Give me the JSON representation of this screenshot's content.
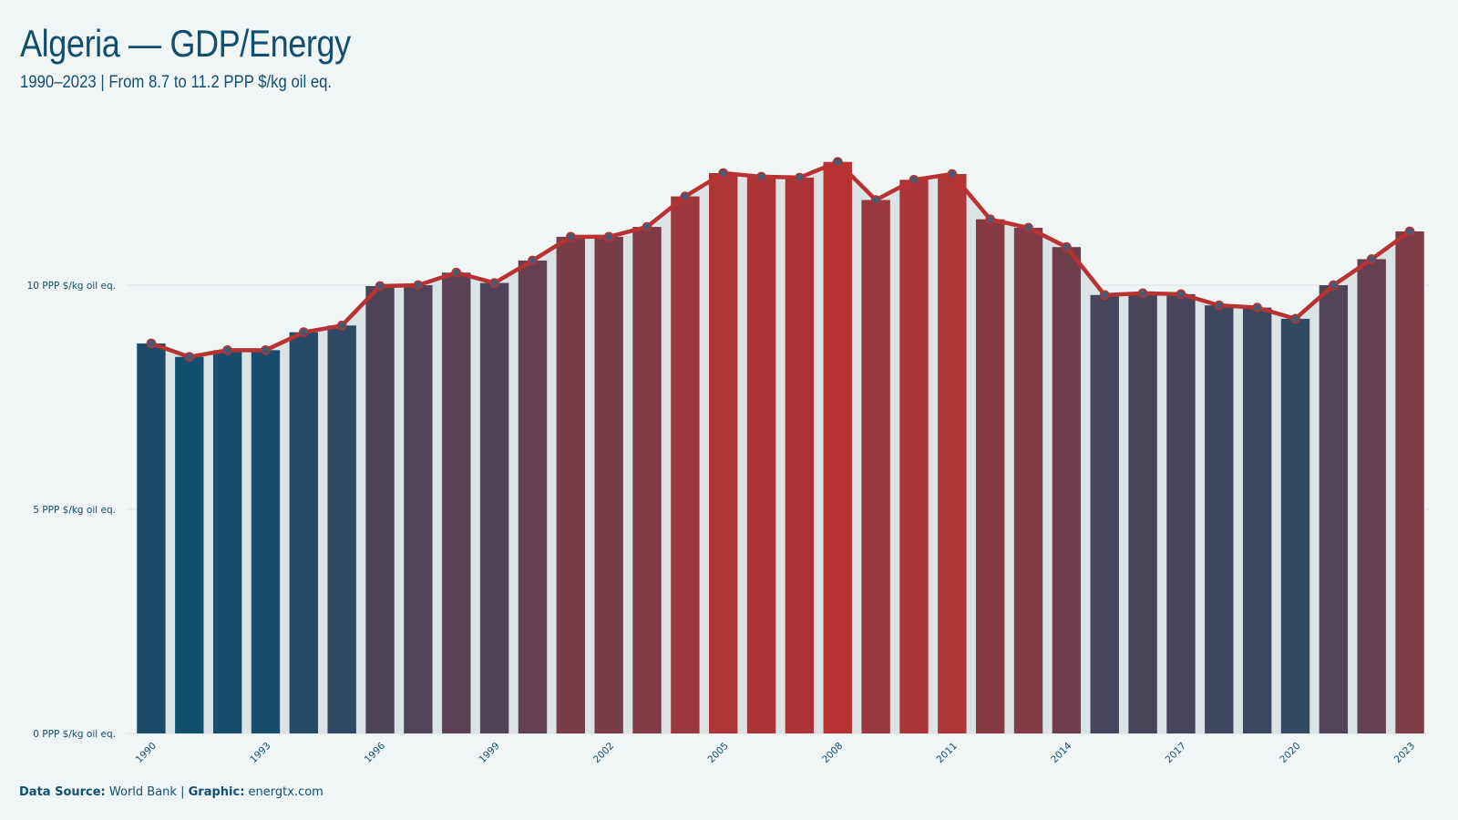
{
  "header": {
    "title": "Algeria — GDP/Energy",
    "subtitle": "1990–2023 | From 8.7 to 11.2 PPP $/kg oil eq."
  },
  "footer": {
    "source_label": "Data Source:",
    "source_value": "World Bank",
    "separator": "|",
    "graphic_label": "Graphic:",
    "graphic_value": "energtx.com"
  },
  "colors": {
    "background": "#f0f6f6",
    "text": "#124e6e",
    "low": "#124e6e",
    "high": "#b83232",
    "line": "#b83232",
    "marker": "#4a5870",
    "grid": "#d8e2e4"
  },
  "chart_data": {
    "type": "bar",
    "categories": [
      "1990",
      "1991",
      "1992",
      "1993",
      "1994",
      "1995",
      "1996",
      "1997",
      "1998",
      "1999",
      "2000",
      "2001",
      "2002",
      "2003",
      "2004",
      "2005",
      "2006",
      "2007",
      "2008",
      "2009",
      "2010",
      "2011",
      "2012",
      "2013",
      "2014",
      "2015",
      "2016",
      "2017",
      "2018",
      "2019",
      "2020",
      "2021",
      "2022",
      "2023"
    ],
    "values": [
      8.7,
      8.4,
      8.55,
      8.55,
      8.95,
      9.1,
      9.98,
      10.0,
      10.28,
      10.05,
      10.55,
      11.08,
      11.08,
      11.3,
      11.98,
      12.5,
      12.42,
      12.4,
      12.75,
      11.9,
      12.35,
      12.48,
      11.47,
      11.28,
      10.85,
      9.78,
      9.82,
      9.8,
      9.55,
      9.5,
      9.25,
      10.0,
      10.58,
      11.2
    ],
    "series": [
      {
        "type": "bar",
        "values": "values"
      },
      {
        "type": "line",
        "values": "values",
        "markers": true
      }
    ],
    "y_ticks": [
      0,
      5,
      10
    ],
    "y_tick_labels": [
      "0 PPP $/kg oil eq.",
      "5 PPP $/kg oil eq.",
      "10 PPP $/kg oil eq."
    ],
    "x_tick_labels": [
      "1990",
      "1993",
      "1996",
      "1999",
      "2002",
      "2005",
      "2008",
      "2011",
      "2014",
      "2017",
      "2020",
      "2023"
    ],
    "ylim": [
      0,
      13.2
    ],
    "grid": true,
    "legend": "none"
  }
}
